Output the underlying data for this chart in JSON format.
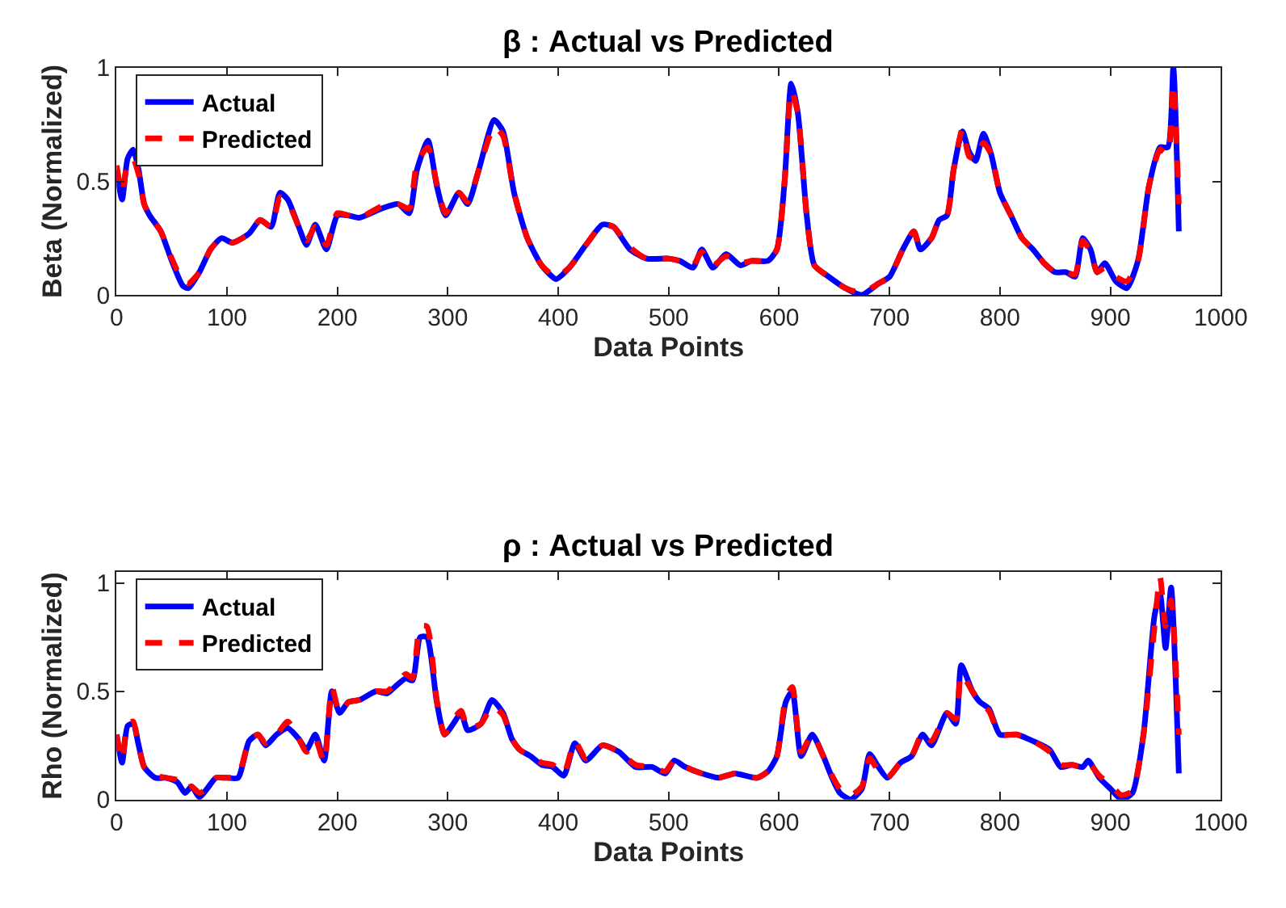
{
  "chart_data": [
    {
      "type": "line",
      "title": "β : Actual vs Predicted",
      "xlabel": "Data Points",
      "ylabel": "Beta (Normalized)",
      "xlim": [
        0,
        1000
      ],
      "xticks": [
        0,
        100,
        200,
        300,
        400,
        500,
        600,
        700,
        800,
        900,
        1000
      ],
      "ylim": [
        0,
        1
      ],
      "yticks": [
        0,
        0.5,
        1
      ],
      "legend": "top left",
      "marker": "none",
      "series": [
        {
          "name": "Actual",
          "color": "#0000ff",
          "line_style": "solid",
          "x": [
            0,
            5,
            10,
            15,
            20,
            25,
            30,
            40,
            50,
            60,
            65,
            75,
            85,
            95,
            105,
            120,
            130,
            140,
            148,
            155,
            165,
            172,
            180,
            190,
            200,
            210,
            220,
            240,
            255,
            265,
            272,
            282,
            290,
            298,
            310,
            318,
            328,
            342,
            350,
            360,
            372,
            385,
            398,
            410,
            425,
            440,
            450,
            465,
            480,
            500,
            510,
            522,
            530,
            540,
            552,
            565,
            575,
            590,
            598,
            605,
            611,
            617,
            625,
            632,
            645,
            660,
            675,
            690,
            700,
            712,
            722,
            728,
            738,
            745,
            752,
            758,
            766,
            772,
            778,
            785,
            792,
            800,
            810,
            820,
            830,
            840,
            850,
            860,
            868,
            875,
            882,
            888,
            895,
            905,
            915,
            925,
            935,
            945,
            952,
            957,
            962
          ],
          "values": [
            0.55,
            0.42,
            0.6,
            0.64,
            0.55,
            0.4,
            0.35,
            0.28,
            0.15,
            0.04,
            0.03,
            0.1,
            0.2,
            0.25,
            0.23,
            0.27,
            0.33,
            0.3,
            0.45,
            0.42,
            0.3,
            0.22,
            0.31,
            0.2,
            0.35,
            0.35,
            0.34,
            0.38,
            0.4,
            0.36,
            0.55,
            0.68,
            0.48,
            0.35,
            0.45,
            0.4,
            0.55,
            0.77,
            0.72,
            0.45,
            0.25,
            0.13,
            0.07,
            0.12,
            0.22,
            0.31,
            0.3,
            0.2,
            0.16,
            0.16,
            0.15,
            0.12,
            0.2,
            0.12,
            0.18,
            0.13,
            0.15,
            0.15,
            0.2,
            0.5,
            0.93,
            0.8,
            0.35,
            0.13,
            0.08,
            0.03,
            0.0,
            0.05,
            0.08,
            0.2,
            0.28,
            0.2,
            0.25,
            0.33,
            0.35,
            0.55,
            0.72,
            0.63,
            0.59,
            0.71,
            0.62,
            0.45,
            0.35,
            0.25,
            0.2,
            0.14,
            0.1,
            0.1,
            0.08,
            0.25,
            0.2,
            0.1,
            0.14,
            0.06,
            0.03,
            0.15,
            0.48,
            0.65,
            0.65,
            1.0,
            0.28
          ]
        },
        {
          "name": "Predicted",
          "color": "#ff0000",
          "line_style": "dashed",
          "x": [
            0,
            5,
            10,
            15,
            20,
            25,
            30,
            40,
            50,
            60,
            65,
            75,
            85,
            95,
            105,
            120,
            130,
            140,
            148,
            155,
            165,
            172,
            180,
            190,
            200,
            210,
            220,
            240,
            255,
            265,
            272,
            282,
            290,
            298,
            310,
            318,
            328,
            342,
            350,
            360,
            372,
            385,
            398,
            410,
            425,
            440,
            450,
            465,
            480,
            500,
            510,
            522,
            530,
            540,
            552,
            565,
            575,
            590,
            598,
            605,
            611,
            617,
            625,
            632,
            645,
            660,
            675,
            690,
            700,
            712,
            722,
            728,
            738,
            745,
            752,
            758,
            766,
            772,
            778,
            785,
            792,
            800,
            810,
            820,
            830,
            840,
            850,
            860,
            868,
            875,
            882,
            888,
            895,
            905,
            915,
            925,
            935,
            945,
            952,
            957,
            962
          ],
          "values": [
            0.57,
            0.45,
            0.58,
            0.6,
            0.53,
            0.4,
            0.35,
            0.28,
            0.16,
            0.06,
            0.05,
            0.1,
            0.2,
            0.25,
            0.23,
            0.27,
            0.33,
            0.3,
            0.43,
            0.41,
            0.3,
            0.24,
            0.3,
            0.22,
            0.36,
            0.35,
            0.34,
            0.39,
            0.4,
            0.38,
            0.58,
            0.65,
            0.49,
            0.36,
            0.45,
            0.41,
            0.55,
            0.74,
            0.7,
            0.45,
            0.25,
            0.13,
            0.08,
            0.12,
            0.22,
            0.31,
            0.3,
            0.21,
            0.16,
            0.16,
            0.15,
            0.13,
            0.19,
            0.13,
            0.17,
            0.14,
            0.15,
            0.15,
            0.2,
            0.5,
            0.9,
            0.8,
            0.35,
            0.13,
            0.08,
            0.03,
            0.01,
            0.05,
            0.08,
            0.2,
            0.28,
            0.21,
            0.25,
            0.33,
            0.35,
            0.55,
            0.73,
            0.61,
            0.6,
            0.67,
            0.62,
            0.45,
            0.35,
            0.25,
            0.2,
            0.14,
            0.1,
            0.1,
            0.09,
            0.24,
            0.19,
            0.1,
            0.12,
            0.08,
            0.06,
            0.15,
            0.48,
            0.64,
            0.62,
            0.93,
            0.4
          ]
        }
      ]
    },
    {
      "type": "line",
      "title": "ρ : Actual vs Predicted",
      "xlabel": "Data Points",
      "ylabel": "Rho (Normalized)",
      "xlim": [
        0,
        1000
      ],
      "xticks": [
        0,
        100,
        200,
        300,
        400,
        500,
        600,
        700,
        800,
        900,
        1000
      ],
      "ylim": [
        0,
        1.05
      ],
      "yticks": [
        0,
        0.5,
        1
      ],
      "legend": "top left",
      "marker": "none",
      "series": [
        {
          "name": "Actual",
          "color": "#0000ff",
          "line_style": "solid",
          "x": [
            0,
            5,
            10,
            15,
            20,
            25,
            35,
            45,
            55,
            62,
            68,
            75,
            82,
            90,
            100,
            110,
            120,
            128,
            135,
            145,
            155,
            165,
            172,
            180,
            188,
            195,
            202,
            210,
            220,
            235,
            245,
            252,
            262,
            268,
            275,
            281,
            290,
            297,
            305,
            312,
            318,
            330,
            340,
            350,
            358,
            365,
            375,
            385,
            395,
            405,
            415,
            425,
            440,
            455,
            470,
            485,
            497,
            505,
            515,
            530,
            545,
            560,
            580,
            590,
            598,
            606,
            612,
            620,
            630,
            640,
            648,
            655,
            665,
            675,
            682,
            690,
            698,
            710,
            720,
            730,
            738,
            752,
            760,
            765,
            775,
            782,
            790,
            800,
            815,
            830,
            845,
            855,
            865,
            875,
            880,
            890,
            900,
            910,
            920,
            930,
            940,
            945,
            950,
            955,
            962
          ],
          "values": [
            0.3,
            0.17,
            0.34,
            0.35,
            0.25,
            0.15,
            0.1,
            0.1,
            0.08,
            0.03,
            0.06,
            0.01,
            0.05,
            0.1,
            0.1,
            0.1,
            0.27,
            0.3,
            0.25,
            0.3,
            0.33,
            0.28,
            0.23,
            0.3,
            0.18,
            0.5,
            0.4,
            0.45,
            0.46,
            0.5,
            0.49,
            0.52,
            0.56,
            0.55,
            0.75,
            0.75,
            0.45,
            0.3,
            0.35,
            0.4,
            0.32,
            0.35,
            0.46,
            0.4,
            0.28,
            0.23,
            0.2,
            0.16,
            0.15,
            0.11,
            0.26,
            0.18,
            0.25,
            0.22,
            0.15,
            0.15,
            0.12,
            0.18,
            0.15,
            0.12,
            0.1,
            0.12,
            0.1,
            0.13,
            0.2,
            0.45,
            0.5,
            0.2,
            0.3,
            0.2,
            0.1,
            0.03,
            0.0,
            0.05,
            0.21,
            0.15,
            0.1,
            0.17,
            0.2,
            0.3,
            0.25,
            0.4,
            0.35,
            0.62,
            0.5,
            0.45,
            0.42,
            0.3,
            0.3,
            0.27,
            0.23,
            0.15,
            0.16,
            0.15,
            0.18,
            0.1,
            0.05,
            0.0,
            0.03,
            0.3,
            0.85,
            0.95,
            0.7,
            0.98,
            0.12
          ]
        },
        {
          "name": "Predicted",
          "color": "#ff0000",
          "line_style": "dashed",
          "x": [
            0,
            5,
            10,
            15,
            20,
            25,
            35,
            45,
            55,
            62,
            68,
            75,
            82,
            90,
            100,
            110,
            120,
            128,
            135,
            145,
            155,
            165,
            172,
            180,
            188,
            195,
            202,
            210,
            220,
            235,
            245,
            252,
            262,
            268,
            275,
            281,
            290,
            297,
            305,
            312,
            318,
            330,
            340,
            350,
            358,
            365,
            375,
            385,
            395,
            405,
            415,
            425,
            440,
            455,
            470,
            485,
            497,
            505,
            515,
            530,
            545,
            560,
            580,
            590,
            598,
            606,
            612,
            620,
            630,
            640,
            648,
            655,
            665,
            675,
            682,
            690,
            698,
            710,
            720,
            730,
            738,
            752,
            760,
            765,
            775,
            782,
            790,
            800,
            815,
            830,
            845,
            855,
            865,
            875,
            880,
            890,
            900,
            910,
            920,
            930,
            940,
            945,
            950,
            955,
            962
          ],
          "values": [
            0.3,
            0.18,
            0.35,
            0.36,
            0.25,
            0.15,
            0.11,
            0.1,
            0.09,
            0.05,
            0.06,
            0.03,
            0.05,
            0.1,
            0.1,
            0.11,
            0.27,
            0.3,
            0.26,
            0.3,
            0.36,
            0.28,
            0.22,
            0.28,
            0.17,
            0.52,
            0.4,
            0.45,
            0.46,
            0.5,
            0.5,
            0.53,
            0.58,
            0.56,
            0.8,
            0.8,
            0.46,
            0.3,
            0.37,
            0.41,
            0.33,
            0.35,
            0.43,
            0.39,
            0.28,
            0.23,
            0.2,
            0.17,
            0.16,
            0.12,
            0.27,
            0.19,
            0.25,
            0.22,
            0.16,
            0.15,
            0.13,
            0.18,
            0.15,
            0.12,
            0.1,
            0.12,
            0.1,
            0.13,
            0.2,
            0.47,
            0.52,
            0.22,
            0.3,
            0.2,
            0.11,
            0.05,
            0.02,
            0.06,
            0.19,
            0.13,
            0.1,
            0.17,
            0.2,
            0.31,
            0.27,
            0.4,
            0.37,
            0.58,
            0.5,
            0.45,
            0.41,
            0.3,
            0.3,
            0.27,
            0.22,
            0.16,
            0.16,
            0.15,
            0.17,
            0.11,
            0.07,
            0.02,
            0.04,
            0.3,
            0.8,
            1.03,
            0.8,
            0.92,
            0.3
          ]
        }
      ]
    }
  ]
}
